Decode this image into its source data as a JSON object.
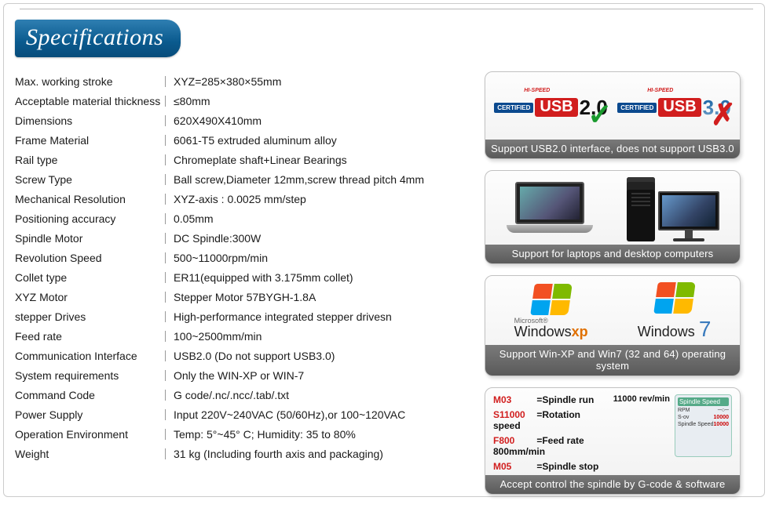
{
  "header": {
    "title": "Specifications"
  },
  "colors": {
    "header_bg_top": "#2f7fb2",
    "header_bg_bottom": "#084c7a",
    "caption_bg": "#6a6a6a",
    "red": "#d11e1e",
    "green": "#1a9a2e",
    "blue": "#0b4a8f"
  },
  "specs": [
    {
      "label": "Max. working stroke",
      "value": "XYZ=285×380×55mm"
    },
    {
      "label": "Acceptable material thickness",
      "value": "≤80mm"
    },
    {
      "label": "Dimensions",
      "value": "620X490X410mm"
    },
    {
      "label": "Frame Material",
      "value": "6061-T5 extruded aluminum alloy"
    },
    {
      "label": "Rail type",
      "value": "Chromeplate shaft+Linear Bearings"
    },
    {
      "label": "Screw Type",
      "value": "Ball screw,Diameter 12mm,screw thread pitch 4mm"
    },
    {
      "label": "Mechanical Resolution",
      "value": "XYZ-axis : 0.0025 mm/step"
    },
    {
      "label": "Positioning accuracy",
      "value": " 0.05mm"
    },
    {
      "label": "Spindle Motor",
      "value": " DC Spindle:300W"
    },
    {
      "label": "Revolution Speed",
      "value": " 500~11000rpm/min"
    },
    {
      "label": "Collet type",
      "value": " ER11(equipped with 3.175mm collet)"
    },
    {
      "label": "XYZ Motor",
      "value": " Stepper Motor 57BYGH-1.8A"
    },
    {
      "label": "stepper Drives",
      "value": " High-performance integrated stepper drivesn"
    },
    {
      "label": "Feed rate",
      "value": " 100~2500mm/min"
    },
    {
      "label": "Communication Interface",
      "value": " USB2.0  (Do not support USB3.0)"
    },
    {
      "label": "System requirements",
      "value": " Only the WIN-XP or WIN-7"
    },
    {
      "label": "Command Code",
      "value": " G code/.nc/.ncc/.tab/.txt"
    },
    {
      "label": "Power Supply",
      "value": "  Input 220V~240VAC (50/60Hz),or 100~120VAC"
    },
    {
      "label": "Operation Environment",
      "value": " Temp: 5°~45° C;   Humidity: 35 to 80%"
    },
    {
      "label": "Weight",
      "value": " 31 kg (Including fourth axis and packaging)"
    }
  ],
  "cards": {
    "usb": {
      "certified": "CERTIFIED",
      "speed_tag": "HI-SPEED",
      "usb_label": "USB",
      "ver_ok": "2.0",
      "ver_no": "3.0",
      "caption": "Support USB2.0 interface, does not support USB3.0"
    },
    "computers": {
      "caption": "Support for laptops and desktop computers"
    },
    "windows": {
      "ms": "Microsoft®",
      "win": "Windows",
      "xp": "xp",
      "seven": "7",
      "caption": "Support Win-XP and Win7 (32 and 64) operating system"
    },
    "gcode": {
      "lines": [
        {
          "cmd": "M03",
          "desc": "Spindle run"
        },
        {
          "cmd": "S11000",
          "desc": "Rotation speed"
        },
        {
          "cmd": "F800",
          "desc": "Feed rate 800mm/min"
        },
        {
          "cmd": "M05",
          "desc": "Spindle stop"
        }
      ],
      "note": "11000 rev/min",
      "panel": {
        "title": "Spindle Speed",
        "rpm_label": "RPM",
        "sov_label": "S-ov",
        "sov_value": "10000",
        "ss_label": "Spindle Speed",
        "ss_value": "10000"
      },
      "caption": "Accept control the spindle by G-code & software"
    }
  }
}
